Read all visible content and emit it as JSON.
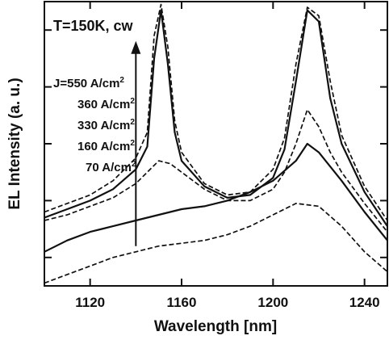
{
  "chart_data": {
    "type": "line",
    "title": "",
    "annotation": "T=150K, cw",
    "xlabel": "Wavelength [nm]",
    "ylabel": "EL Intensity (a. u.)",
    "xlim": [
      1100,
      1250
    ],
    "ylim": [
      0,
      1
    ],
    "x_ticks": [
      1120,
      1160,
      1200,
      1240
    ],
    "y_ticks": [
      0.1,
      0.3,
      0.5,
      0.7,
      0.9
    ],
    "y_tick_labels": false,
    "grid": false,
    "legend": "none",
    "arrow": {
      "x": 1140,
      "from_y": 0.14,
      "to_y": 0.85
    },
    "current_labels": [
      {
        "value": "J=550 A/cm",
        "sup": "2"
      },
      {
        "value": "360 A/cm",
        "sup": "2"
      },
      {
        "value": "330 A/cm",
        "sup": "2"
      },
      {
        "value": "160 A/cm",
        "sup": "2"
      },
      {
        "value": "70 A/cm",
        "sup": "2"
      }
    ],
    "series": [
      {
        "style": "dashed",
        "x": [
          1100,
          1110,
          1120,
          1130,
          1140,
          1145,
          1148,
          1151,
          1154,
          1157,
          1160,
          1170,
          1180,
          1190,
          1200,
          1205,
          1210,
          1215,
          1220,
          1225,
          1230,
          1240,
          1250
        ],
        "y": [
          0.26,
          0.29,
          0.32,
          0.37,
          0.45,
          0.54,
          0.88,
          0.99,
          0.84,
          0.58,
          0.47,
          0.36,
          0.32,
          0.33,
          0.41,
          0.52,
          0.78,
          0.98,
          0.95,
          0.72,
          0.53,
          0.35,
          0.23
        ]
      },
      {
        "style": "solid",
        "x": [
          1100,
          1110,
          1120,
          1130,
          1140,
          1145,
          1148,
          1151,
          1154,
          1157,
          1160,
          1170,
          1180,
          1190,
          1200,
          1205,
          1210,
          1215,
          1220,
          1225,
          1230,
          1240,
          1250
        ],
        "y": [
          0.24,
          0.27,
          0.3,
          0.34,
          0.41,
          0.49,
          0.8,
          0.97,
          0.78,
          0.54,
          0.44,
          0.35,
          0.31,
          0.32,
          0.38,
          0.48,
          0.72,
          0.97,
          0.93,
          0.66,
          0.5,
          0.33,
          0.21
        ]
      },
      {
        "style": "dashed",
        "x": [
          1100,
          1110,
          1120,
          1130,
          1140,
          1145,
          1150,
          1155,
          1160,
          1170,
          1180,
          1190,
          1200,
          1205,
          1210,
          1215,
          1220,
          1225,
          1230,
          1240,
          1250
        ],
        "y": [
          0.23,
          0.25,
          0.28,
          0.31,
          0.36,
          0.4,
          0.44,
          0.43,
          0.4,
          0.34,
          0.3,
          0.3,
          0.34,
          0.4,
          0.5,
          0.62,
          0.56,
          0.47,
          0.4,
          0.29,
          0.19
        ]
      },
      {
        "style": "solid",
        "x": [
          1100,
          1110,
          1120,
          1130,
          1140,
          1150,
          1160,
          1170,
          1180,
          1190,
          1200,
          1210,
          1215,
          1220,
          1230,
          1240,
          1250
        ],
        "y": [
          0.12,
          0.16,
          0.19,
          0.21,
          0.23,
          0.25,
          0.27,
          0.28,
          0.3,
          0.33,
          0.37,
          0.44,
          0.5,
          0.47,
          0.37,
          0.26,
          0.16
        ]
      },
      {
        "style": "dashed",
        "x": [
          1100,
          1110,
          1120,
          1130,
          1140,
          1150,
          1160,
          1170,
          1180,
          1190,
          1200,
          1210,
          1220,
          1230,
          1240,
          1250
        ],
        "y": [
          0.01,
          0.04,
          0.07,
          0.1,
          0.12,
          0.14,
          0.15,
          0.16,
          0.18,
          0.21,
          0.25,
          0.29,
          0.28,
          0.21,
          0.12,
          0.05
        ]
      }
    ]
  }
}
